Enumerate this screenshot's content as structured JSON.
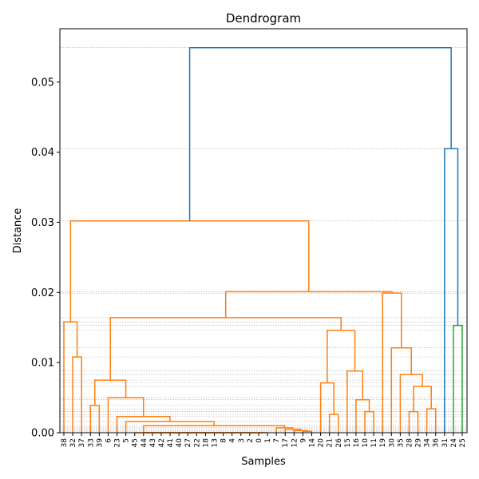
{
  "chart_data": {
    "type": "dendrogram",
    "title": "Dendrogram",
    "x_label": "Samples",
    "y_label": "Distance",
    "categories": [
      "38",
      "32",
      "37",
      "33",
      "39",
      "6",
      "23",
      "5",
      "45",
      "44",
      "43",
      "42",
      "41",
      "40",
      "27",
      "22",
      "18",
      "13",
      "8",
      "4",
      "3",
      "2",
      "0",
      "1",
      "7",
      "17",
      "12",
      "9",
      "14",
      "20",
      "21",
      "26",
      "15",
      "16",
      "10",
      "11",
      "19",
      "30",
      "35",
      "28",
      "29",
      "34",
      "36",
      "31",
      "24",
      "25"
    ],
    "merges": [
      [
        22,
        23,
        0
      ],
      [
        21,
        46,
        0
      ],
      [
        20,
        47,
        0
      ],
      [
        19,
        48,
        0
      ],
      [
        18,
        49,
        0
      ],
      [
        17,
        50,
        0
      ],
      [
        16,
        51,
        0
      ],
      [
        15,
        52,
        0
      ],
      [
        14,
        53,
        0
      ],
      [
        13,
        54,
        0
      ],
      [
        12,
        55,
        0
      ],
      [
        11,
        56,
        0
      ],
      [
        10,
        57,
        0
      ],
      [
        9,
        58,
        0
      ],
      [
        8,
        59,
        0
      ],
      [
        27,
        28,
        0.0002
      ],
      [
        26,
        61,
        0.0003
      ],
      [
        25,
        62,
        0.0005
      ],
      [
        24,
        63,
        0.0007
      ],
      [
        60,
        64,
        0.001
      ],
      [
        7,
        65,
        0.0016
      ],
      [
        6,
        66,
        0.0023
      ],
      [
        5,
        67,
        0.005
      ],
      [
        3,
        4,
        0.0039
      ],
      [
        69,
        68,
        0.0075
      ],
      [
        1,
        2,
        0.0108
      ],
      [
        0,
        71,
        0.0158
      ],
      [
        30,
        31,
        0.0026
      ],
      [
        29,
        73,
        0.0071
      ],
      [
        34,
        35,
        0.003
      ],
      [
        33,
        75,
        0.0047
      ],
      [
        32,
        76,
        0.0088
      ],
      [
        74,
        77,
        0.0146
      ],
      [
        70,
        78,
        0.0164
      ],
      [
        39,
        40,
        0.003
      ],
      [
        41,
        42,
        0.0034
      ],
      [
        80,
        81,
        0.0066
      ],
      [
        38,
        82,
        0.0083
      ],
      [
        37,
        83,
        0.0121
      ],
      [
        36,
        84,
        0.0199
      ],
      [
        79,
        85,
        0.0201
      ],
      [
        72,
        86,
        0.0302
      ],
      [
        44,
        45,
        0.0153
      ],
      [
        43,
        88,
        0.0405
      ],
      [
        87,
        89,
        0.0549
      ]
    ],
    "colors": [
      "#ff7f0e",
      "#ff7f0e",
      "#ff7f0e",
      "#ff7f0e",
      "#ff7f0e",
      "#ff7f0e",
      "#ff7f0e",
      "#ff7f0e",
      "#ff7f0e",
      "#ff7f0e",
      "#ff7f0e",
      "#ff7f0e",
      "#ff7f0e",
      "#ff7f0e",
      "#ff7f0e",
      "#ff7f0e",
      "#ff7f0e",
      "#ff7f0e",
      "#ff7f0e",
      "#ff7f0e",
      "#ff7f0e",
      "#ff7f0e",
      "#ff7f0e",
      "#ff7f0e",
      "#ff7f0e",
      "#ff7f0e",
      "#ff7f0e",
      "#ff7f0e",
      "#ff7f0e",
      "#ff7f0e",
      "#ff7f0e",
      "#ff7f0e",
      "#ff7f0e",
      "#ff7f0e",
      "#ff7f0e",
      "#ff7f0e",
      "#ff7f0e",
      "#ff7f0e",
      "#ff7f0e",
      "#ff7f0e",
      "#ff7f0e",
      "#ff7f0e",
      "#2ca02c",
      "#1f77b4",
      "#1f77b4"
    ],
    "ylim": [
      0,
      0.0576
    ],
    "yticks": [
      {
        "value": 0,
        "label": "0.00"
      },
      {
        "value": 0.01,
        "label": "0.01"
      },
      {
        "value": 0.02,
        "label": "0.02"
      },
      {
        "value": 0.03,
        "label": "0.03"
      },
      {
        "value": 0.04,
        "label": "0.04"
      },
      {
        "value": 0.05,
        "label": "0.05"
      }
    ],
    "grid": true
  }
}
